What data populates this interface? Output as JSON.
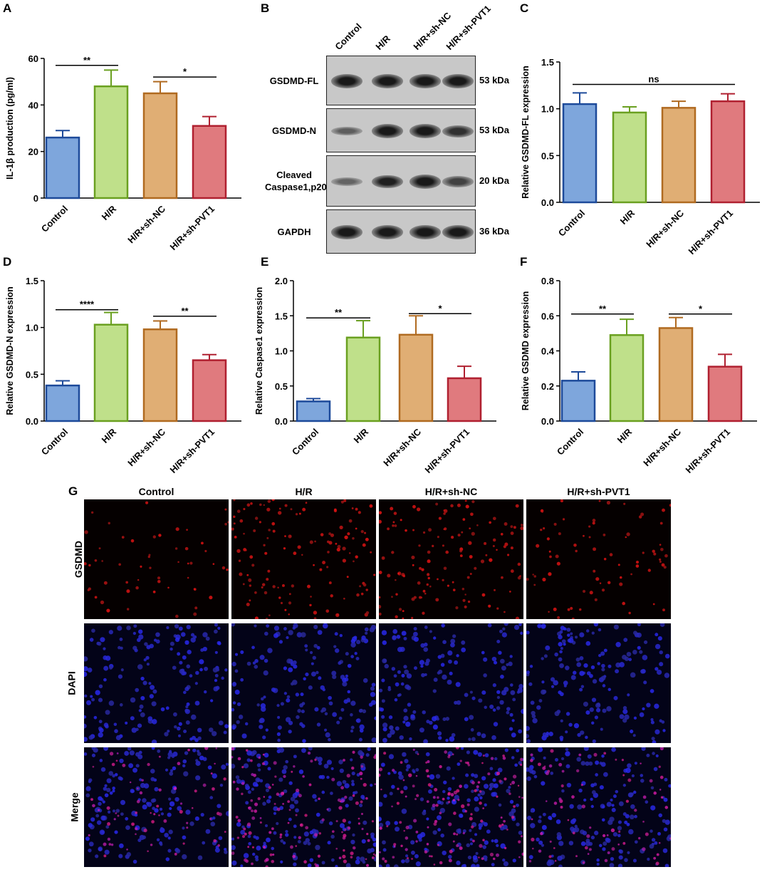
{
  "panel_letters": {
    "A": "A",
    "B": "B",
    "C": "C",
    "D": "D",
    "E": "E",
    "F": "F",
    "G": "G"
  },
  "colors": {
    "fills": [
      "#7ea6dc",
      "#bfe08a",
      "#e0ae74",
      "#e07a7e"
    ],
    "strokes": [
      "#1d4a9a",
      "#6aa020",
      "#b06a20",
      "#b02030"
    ]
  },
  "chart_data": [
    {
      "panel": "A",
      "type": "bar",
      "categories": [
        "Control",
        "H/R",
        "H/R+sh-NC",
        "H/R+sh-PVT1"
      ],
      "values": [
        26,
        48,
        45,
        31
      ],
      "errors": [
        3,
        7,
        5,
        4
      ],
      "ylabel": "IL-1β production (pg/ml)",
      "ylim": [
        0,
        60
      ],
      "yticks": [
        0,
        20,
        40,
        60
      ],
      "tick_labels": [
        "0",
        "20",
        "40",
        "60"
      ],
      "significance": [
        {
          "from": 0,
          "to": 1,
          "label": "**",
          "y": 57
        },
        {
          "from": 2,
          "to": 3,
          "label": "*",
          "y": 52
        }
      ]
    },
    {
      "panel": "C",
      "type": "bar",
      "categories": [
        "Control",
        "H/R",
        "H/R+sh-NC",
        "H/R+sh-PVT1"
      ],
      "values": [
        1.05,
        0.96,
        1.01,
        1.08
      ],
      "errors": [
        0.12,
        0.06,
        0.07,
        0.08
      ],
      "ylabel": "Relative GSDMD-FL expression",
      "ylim": [
        0,
        1.5
      ],
      "yticks": [
        0,
        0.5,
        1.0,
        1.5
      ],
      "tick_labels": [
        "0.0",
        "0.5",
        "1.0",
        "1.5"
      ],
      "significance": [
        {
          "from": 0,
          "to": 3,
          "label": "ns",
          "y": 1.26
        }
      ]
    },
    {
      "panel": "D",
      "type": "bar",
      "categories": [
        "Control",
        "H/R",
        "H/R+sh-NC",
        "H/R+sh-PVT1"
      ],
      "values": [
        0.38,
        1.03,
        0.98,
        0.65
      ],
      "errors": [
        0.05,
        0.13,
        0.09,
        0.06
      ],
      "ylabel": "Relative GSDMD-N expression",
      "ylim": [
        0,
        1.5
      ],
      "yticks": [
        0,
        0.5,
        1.0,
        1.5
      ],
      "tick_labels": [
        "0.0",
        "0.5",
        "1.0",
        "1.5"
      ],
      "significance": [
        {
          "from": 0,
          "to": 1,
          "label": "****",
          "y": 1.19
        },
        {
          "from": 2,
          "to": 3,
          "label": "**",
          "y": 1.12
        }
      ]
    },
    {
      "panel": "E",
      "type": "bar",
      "categories": [
        "Control",
        "H/R",
        "H/R+sh-NC",
        "H/R+sh-PVT1"
      ],
      "values": [
        0.28,
        1.19,
        1.23,
        0.61
      ],
      "errors": [
        0.04,
        0.24,
        0.27,
        0.17
      ],
      "ylabel": "Relative Caspase1 expression",
      "ylim": [
        0,
        2.0
      ],
      "yticks": [
        0,
        0.5,
        1.0,
        1.5,
        2.0
      ],
      "tick_labels": [
        "0.0",
        "0.5",
        "1.0",
        "1.5",
        "2.0"
      ],
      "significance": [
        {
          "from": 0,
          "to": 1,
          "label": "**",
          "y": 1.47
        },
        {
          "from": 2,
          "to": 3,
          "label": "*",
          "y": 1.53
        }
      ]
    },
    {
      "panel": "F",
      "type": "bar",
      "categories": [
        "Control",
        "H/R",
        "H/R+sh-NC",
        "H/R+sh-PVT1"
      ],
      "values": [
        0.23,
        0.49,
        0.53,
        0.31
      ],
      "errors": [
        0.05,
        0.09,
        0.06,
        0.07
      ],
      "ylabel": "Relative GSDMD expression",
      "ylim": [
        0,
        0.8
      ],
      "yticks": [
        0,
        0.2,
        0.4,
        0.6,
        0.8
      ],
      "tick_labels": [
        "0.0",
        "0.2",
        "0.4",
        "0.6",
        "0.8"
      ],
      "significance": [
        {
          "from": 0,
          "to": 1,
          "label": "**",
          "y": 0.61
        },
        {
          "from": 2,
          "to": 3,
          "label": "*",
          "y": 0.61
        }
      ]
    }
  ],
  "western_blot": {
    "lanes": [
      "Control",
      "H/R",
      "H/R+sh-NC",
      "H/R+sh-PVT1"
    ],
    "rows": [
      {
        "label": "GSDMD-FL",
        "kda": "53 kDa",
        "intensity": [
          0.95,
          0.95,
          0.95,
          0.95
        ]
      },
      {
        "label": "GSDMD-N",
        "kda": "53 kDa",
        "intensity": [
          0.35,
          0.95,
          0.95,
          0.75
        ]
      },
      {
        "label": "Cleaved\nCaspase1,p20",
        "kda": "20 kDa",
        "intensity": [
          0.3,
          0.9,
          0.95,
          0.6
        ]
      },
      {
        "label": "GAPDH",
        "kda": "36 kDa",
        "intensity": [
          0.95,
          0.95,
          0.95,
          0.95
        ]
      }
    ]
  },
  "fluorescence": {
    "columns": [
      "Control",
      "H/R",
      "H/R+sh-NC",
      "H/R+sh-PVT1"
    ],
    "rows": [
      {
        "label": "GSDMD",
        "channel": "red",
        "density": [
          0.25,
          0.6,
          0.6,
          0.35
        ]
      },
      {
        "label": "DAPI",
        "channel": "blue",
        "density": [
          0.7,
          0.7,
          0.7,
          0.7
        ]
      },
      {
        "label": "Merge",
        "channel": "merge",
        "density": [
          0.3,
          0.65,
          0.65,
          0.35
        ]
      }
    ]
  }
}
